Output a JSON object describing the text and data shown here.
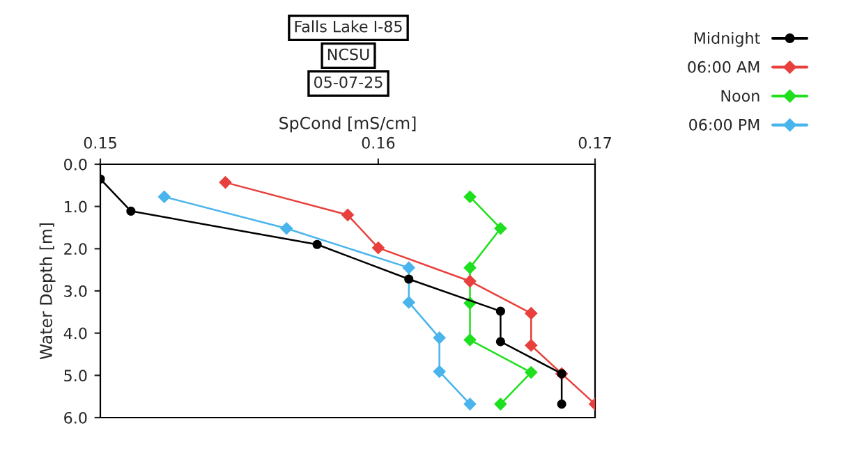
{
  "chart_data": {
    "type": "line",
    "title": "Falls Lake I-85",
    "subtitle": "NCSU",
    "annotations": [
      "05-07-25"
    ],
    "xlabel": "SpCond [mS/cm]",
    "ylabel": "Water Depth [m]",
    "xlim": [
      0.15,
      0.1678
    ],
    "xticks": [
      0.15,
      0.16,
      {
        "value": 0.1678,
        "label": "0.17"
      }
    ],
    "ylim": [
      6.0,
      0.0
    ],
    "yticks": [
      {
        "value": 0,
        "label": "0.0"
      },
      {
        "value": 1,
        "label": "1.0"
      },
      {
        "value": 2,
        "label": "2.0"
      },
      {
        "value": 3,
        "label": "3.0"
      },
      {
        "value": 4,
        "label": "4.0"
      },
      {
        "value": 5,
        "label": "5.0"
      },
      {
        "value": 6,
        "label": "6.0"
      }
    ],
    "grid": false,
    "legend": "top right",
    "line_style": "solid",
    "series": [
      {
        "name": "Midnight",
        "color": "#000000",
        "marker": "circle",
        "x": [
          0.15,
          0.1511,
          0.1578,
          0.1611,
          0.1644,
          0.1644,
          0.1666,
          0.1666
        ],
        "values": [
          0.35,
          1.11,
          1.9,
          2.72,
          3.48,
          4.2,
          4.96,
          5.68
        ]
      },
      {
        "name": "06:00 AM",
        "color": "#e8403c",
        "marker": "diamond",
        "x": [
          0.1545,
          0.1589,
          0.16,
          0.1633,
          0.1655,
          0.1655,
          0.1666,
          0.1678
        ],
        "values": [
          0.43,
          1.2,
          1.98,
          2.77,
          3.53,
          4.29,
          4.96,
          5.68
        ]
      },
      {
        "name": "Noon",
        "color": "#1ee01e",
        "marker": "diamond",
        "x": [
          0.1633,
          0.1644,
          0.1633,
          0.1633,
          0.1633,
          0.1655,
          0.1644
        ],
        "values": [
          0.77,
          1.52,
          2.45,
          3.29,
          4.16,
          4.93,
          5.68
        ]
      },
      {
        "name": "06:00 PM",
        "color": "#4ab4ec",
        "marker": "diamond",
        "x": [
          0.1523,
          0.1567,
          0.1611,
          0.1611,
          0.1622,
          0.1622,
          0.1633
        ],
        "values": [
          0.77,
          1.52,
          2.45,
          3.27,
          4.11,
          4.91,
          5.68
        ]
      }
    ]
  }
}
